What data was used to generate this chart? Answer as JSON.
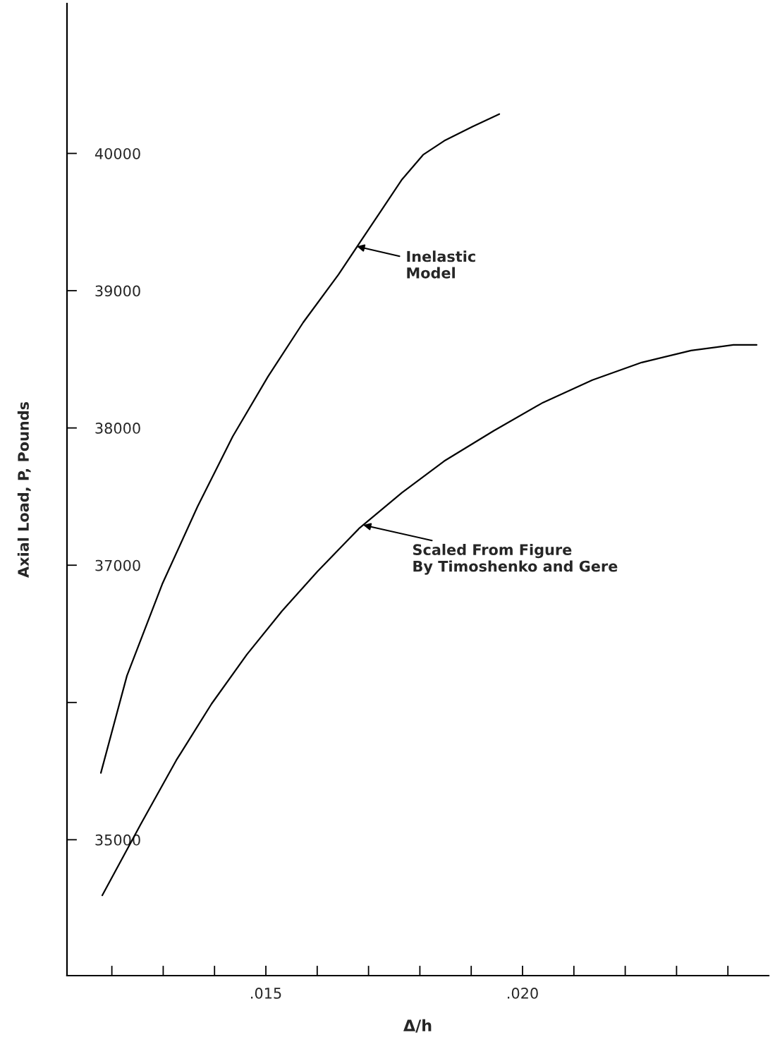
{
  "chart_data": {
    "type": "line",
    "xlabel": "Δ/h",
    "ylabel": "Axial Load, P, Pounds",
    "xlim": [
      0.011126,
      0.024794
    ],
    "ylim": [
      34010,
      41092
    ],
    "xticks": [
      {
        "value": 0.012,
        "label": null
      },
      {
        "value": 0.013,
        "label": null
      },
      {
        "value": 0.014,
        "label": null
      },
      {
        "value": 0.015,
        "label": ".015"
      },
      {
        "value": 0.016,
        "label": null
      },
      {
        "value": 0.017,
        "label": null
      },
      {
        "value": 0.018,
        "label": null
      },
      {
        "value": 0.019,
        "label": null
      },
      {
        "value": 0.02,
        "label": ".020"
      },
      {
        "value": 0.021,
        "label": null
      },
      {
        "value": 0.022,
        "label": null
      },
      {
        "value": 0.023,
        "label": null
      },
      {
        "value": 0.024,
        "label": null
      }
    ],
    "yticks": [
      35000,
      {
        "value": 36000,
        "label": null
      },
      37000,
      38000,
      39000,
      40000
    ],
    "grid": false,
    "legend": false,
    "series": [
      {
        "color": "#000000",
        "x": [
          0.011786,
          0.012294,
          0.012981,
          0.013668,
          0.014354,
          0.015041,
          0.015728,
          0.016415,
          0.016827,
          0.017239,
          0.017651,
          0.018063,
          0.018475,
          0.019025,
          0.019547
        ],
        "values": [
          35487,
          36195,
          36862,
          37426,
          37938,
          38374,
          38769,
          39118,
          39349,
          39579,
          39810,
          39990,
          40092,
          40195,
          40287
        ]
      },
      {
        "color": "#000000",
        "x": [
          0.011813,
          0.012569,
          0.013255,
          0.013942,
          0.014629,
          0.015316,
          0.016003,
          0.016827,
          0.017651,
          0.018475,
          0.019437,
          0.020398,
          0.02136,
          0.022321,
          0.023283,
          0.024107,
          0.02456
        ],
        "values": [
          34595,
          35118,
          35579,
          35990,
          36349,
          36667,
          36954,
          37272,
          37528,
          37759,
          37979,
          38185,
          38349,
          38477,
          38564,
          38605,
          38605
        ]
      }
    ],
    "annotations": [
      {
        "text": "Inelastic\nModel",
        "x": 0.016772,
        "y": 39323
      },
      {
        "text": "Scaled From Figure\nBy Timoshenko and Gere",
        "x": 0.016896,
        "y": 37293
      }
    ]
  }
}
